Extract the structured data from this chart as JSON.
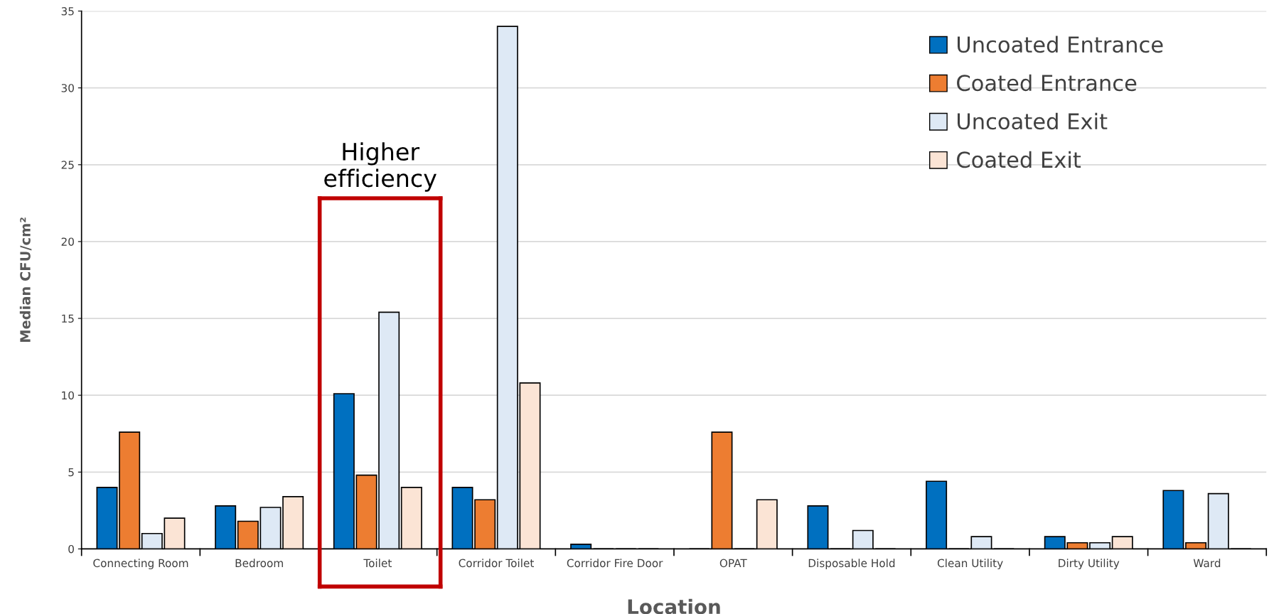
{
  "chart_data": {
    "type": "bar",
    "categories": [
      "Connecting Room",
      "Bedroom",
      "Toilet",
      "Corridor Toilet",
      "Corridor Fire Door",
      "OPAT",
      "Disposable Hold",
      "Clean Utility",
      "Dirty Utility",
      "Ward"
    ],
    "series": [
      {
        "name": "Uncoated Entrance",
        "color": "#0070c0",
        "values": [
          4.0,
          2.8,
          10.1,
          4.0,
          0.3,
          0,
          2.8,
          4.4,
          0.8,
          3.8
        ]
      },
      {
        "name": "Coated Entrance",
        "color": "#ed7d31",
        "values": [
          7.6,
          1.8,
          4.8,
          3.2,
          0,
          7.6,
          0,
          0,
          0.4,
          0.4
        ]
      },
      {
        "name": "Uncoated Exit",
        "color": "#dee9f5",
        "values": [
          1.0,
          2.7,
          15.4,
          34.0,
          0,
          0,
          1.2,
          0.8,
          0.4,
          3.6
        ]
      },
      {
        "name": "Coated Exit",
        "color": "#fbe4d5",
        "values": [
          2.0,
          3.4,
          4.0,
          10.8,
          0,
          3.2,
          0,
          0,
          0.8,
          0
        ]
      }
    ],
    "xlabel": "Location",
    "ylabel": "Median CFU/cm²",
    "ylim": [
      0,
      35
    ],
    "yticks": [
      0,
      5,
      10,
      15,
      20,
      25,
      30,
      35
    ],
    "grid": "y",
    "legend": "top right",
    "annotations": [
      "Higher\nefficiency"
    ]
  }
}
